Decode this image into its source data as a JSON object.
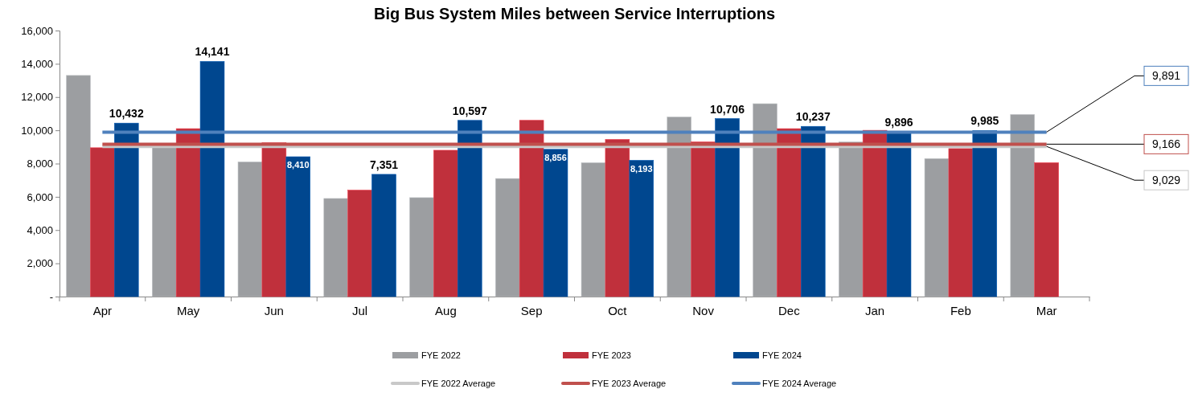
{
  "chart_data": {
    "type": "bar",
    "title": "Big Bus System Miles between Service Interruptions",
    "categories": [
      "Apr",
      "May",
      "Jun",
      "Jul",
      "Aug",
      "Sep",
      "Oct",
      "Nov",
      "Dec",
      "Jan",
      "Feb",
      "Mar"
    ],
    "series": [
      {
        "name": "FYE 2022",
        "color": "#9c9ea1",
        "values": [
          13300,
          9000,
          8100,
          5900,
          5950,
          7100,
          8050,
          10800,
          11600,
          9300,
          8300,
          10950
        ]
      },
      {
        "name": "FYE 2023",
        "color": "#c0303c",
        "values": [
          8950,
          10100,
          9250,
          6400,
          8800,
          10600,
          9450,
          9300,
          10100,
          10000,
          8900,
          8050
        ]
      },
      {
        "name": "FYE 2024",
        "color": "#00478f",
        "values": [
          10432,
          14141,
          8410,
          7351,
          10597,
          8856,
          8193,
          10706,
          10237,
          9896,
          9985,
          null
        ],
        "value_labels": [
          "10,432",
          "14,141",
          "8,410",
          "7,351",
          "10,597",
          "8,856",
          "8,193",
          "10,706",
          "10,237",
          "9,896",
          "9,985",
          null
        ]
      },
      {
        "name": "FYE 2022 Average",
        "type": "line",
        "color": "#c8c8c8",
        "values": [
          9029,
          9029,
          9029,
          9029,
          9029,
          9029,
          9029,
          9029,
          9029,
          9029,
          9029,
          9029
        ],
        "value_labels": [
          null,
          null,
          null,
          null,
          null,
          null,
          null,
          null,
          null,
          null,
          null,
          "9,029"
        ]
      },
      {
        "name": "FYE 2023 Average",
        "type": "line",
        "color": "#c0504d",
        "values": [
          9166,
          9166,
          9166,
          9166,
          9166,
          9166,
          9166,
          9166,
          9166,
          9166,
          9166,
          9166
        ],
        "value_labels": [
          null,
          null,
          null,
          null,
          null,
          null,
          null,
          null,
          null,
          null,
          null,
          "9,166"
        ]
      },
      {
        "name": "FYE 2024 Average",
        "type": "line",
        "color": "#4f81bd",
        "values": [
          9891,
          9891,
          9891,
          9891,
          9891,
          9891,
          9891,
          9891,
          9891,
          9891,
          9891,
          9891
        ],
        "value_labels": [
          null,
          null,
          null,
          null,
          null,
          null,
          null,
          null,
          null,
          null,
          null,
          "9,891"
        ]
      }
    ],
    "ylim": [
      0,
      16000
    ],
    "yticks": [
      {
        "value": 0,
        "label": "-"
      },
      {
        "value": 2000,
        "label": "2,000"
      },
      {
        "value": 4000,
        "label": "4,000"
      },
      {
        "value": 6000,
        "label": "6,000"
      },
      {
        "value": 8000,
        "label": "8,000"
      },
      {
        "value": 10000,
        "label": "10,000"
      },
      {
        "value": 12000,
        "label": "12,000"
      },
      {
        "value": 14000,
        "label": "14,000"
      },
      {
        "value": 16000,
        "label": "16,000"
      }
    ],
    "legend": "bottom"
  }
}
